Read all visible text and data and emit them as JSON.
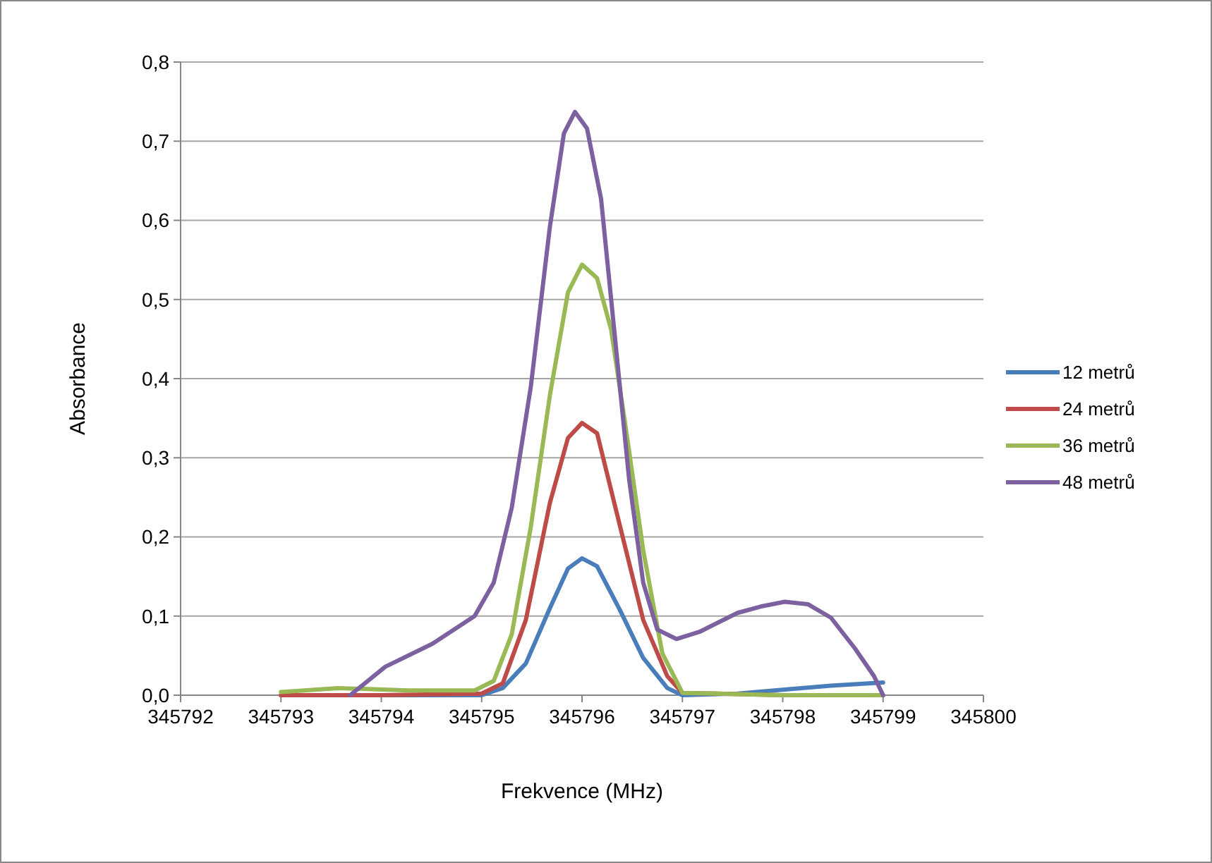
{
  "chart_data": {
    "type": "line",
    "xlabel": "Frekvence (MHz)",
    "ylabel": "Absorbance",
    "xlim": [
      345792,
      345800
    ],
    "xticks": [
      345792,
      345793,
      345794,
      345795,
      345796,
      345797,
      345798,
      345799,
      345800
    ],
    "ylim": [
      0,
      0.8
    ],
    "yticks": [
      {
        "value": 0,
        "label": "0,0"
      },
      {
        "value": 0.1,
        "label": "0,1"
      },
      {
        "value": 0.2,
        "label": "0,2"
      },
      {
        "value": 0.3,
        "label": "0,3"
      },
      {
        "value": 0.4,
        "label": "0,4"
      },
      {
        "value": 0.5,
        "label": "0,5"
      },
      {
        "value": 0.6,
        "label": "0,6"
      },
      {
        "value": 0.7,
        "label": "0,7"
      },
      {
        "value": 0.8,
        "label": "0,8"
      }
    ],
    "grid": "y",
    "legend": "right",
    "marker": "none",
    "line_style": "solid",
    "series": [
      {
        "name": "12 metrů",
        "color": "#4a7ebb",
        "x": [
          345793,
          345794,
          345795,
          345795.21,
          345795.44,
          345795.68,
          345795.86,
          345796,
          345796.15,
          345796.38,
          345796.61,
          345796.85,
          345797,
          345797.55,
          345798,
          345798.48,
          345799
        ],
        "values": [
          0,
          0,
          0,
          0.009,
          0.04,
          0.11,
          0.16,
          0.173,
          0.163,
          0.107,
          0.047,
          0.009,
          0,
          0.002,
          0.007,
          0.012,
          0.016
        ]
      },
      {
        "name": "24 metrů",
        "color": "#be4b48",
        "x": [
          345793,
          345794,
          345795,
          345795.21,
          345795.44,
          345795.68,
          345795.86,
          345796,
          345796.15,
          345796.38,
          345796.61,
          345796.85,
          345797,
          345798,
          345799
        ],
        "values": [
          0,
          0,
          0.002,
          0.015,
          0.095,
          0.243,
          0.325,
          0.344,
          0.331,
          0.213,
          0.095,
          0.024,
          0.003,
          0,
          0
        ]
      },
      {
        "name": "36 metrů",
        "color": "#98b954",
        "x": [
          345793,
          345793.57,
          345794.27,
          345794.93,
          345795.12,
          345795.3,
          345795.49,
          345795.68,
          345795.86,
          345796,
          345796.15,
          345796.29,
          345796.43,
          345796.61,
          345796.8,
          345797,
          345798,
          345799
        ],
        "values": [
          0.004,
          0.009,
          0.006,
          0.006,
          0.018,
          0.077,
          0.213,
          0.379,
          0.509,
          0.544,
          0.527,
          0.462,
          0.343,
          0.183,
          0.053,
          0.003,
          0,
          0
        ]
      },
      {
        "name": "48 metrů",
        "color": "#7d60a0",
        "x": [
          345793.69,
          345794.04,
          345794.51,
          345794.93,
          345795.12,
          345795.3,
          345795.49,
          345795.68,
          345795.82,
          345795.93,
          345796.05,
          345796.19,
          345796.33,
          345796.47,
          345796.61,
          345796.75,
          345796.94,
          345797.17,
          345797.55,
          345797.78,
          345798.02,
          345798.25,
          345798.48,
          345798.72,
          345798.91,
          345799
        ],
        "values": [
          0,
          0.036,
          0.065,
          0.1,
          0.142,
          0.237,
          0.39,
          0.592,
          0.71,
          0.737,
          0.716,
          0.627,
          0.45,
          0.272,
          0.142,
          0.083,
          0.071,
          0.08,
          0.104,
          0.112,
          0.118,
          0.115,
          0.098,
          0.059,
          0.024,
          0
        ]
      }
    ]
  }
}
